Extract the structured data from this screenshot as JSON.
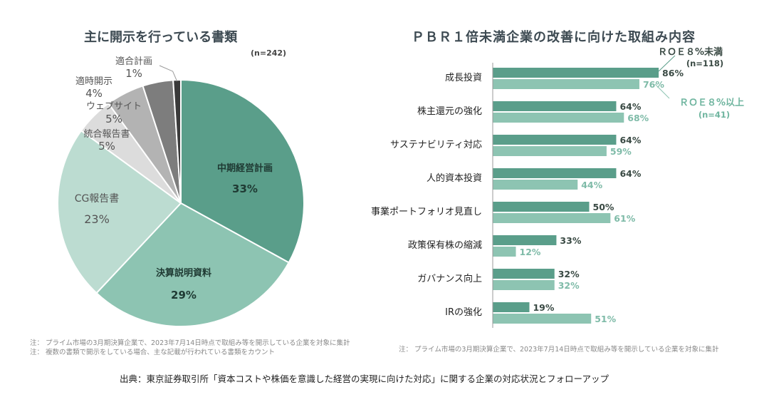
{
  "footer": {
    "source": "出典：東京証券取引所「資本コストや株価を意識した経営の実現に向けた対応」に関する企業の対応状況とフォローアップ"
  },
  "colors": {
    "s1": "#5a9e8a",
    "s2": "#8dc4b2",
    "s3": "#bcdcd1",
    "gray1": "#dcdcdc",
    "gray2": "#b3b3b3",
    "gray3": "#7d7d7d",
    "gray4": "#3a3a3a"
  },
  "chart_data": [
    {
      "type": "pie",
      "title": "主に開示を行っている書類",
      "n_label": "(n=242)",
      "slices": [
        {
          "label": "中期経営計画",
          "value": 33,
          "value_label": "33%"
        },
        {
          "label": "決算説明資料",
          "value": 29,
          "value_label": "29%"
        },
        {
          "label": "CG報告書",
          "value": 23,
          "value_label": "23%"
        },
        {
          "label": "統合報告書",
          "value": 5,
          "value_label": "5%"
        },
        {
          "label": "ウェブサイト",
          "value": 5,
          "value_label": "5%"
        },
        {
          "label": "適時開示",
          "value": 4,
          "value_label": "4%"
        },
        {
          "label": "適合計画",
          "value": 1,
          "value_label": "1%"
        }
      ],
      "notes": [
        "注： プライム市場の3月期決算企業で、2023年7月14日時点で取組み等を開示している企業を対象に集計",
        "注： 複数の書類で開示をしている場合、主な記載が行われている書類をカウント"
      ]
    },
    {
      "type": "bar",
      "orientation": "horizontal",
      "title": "ＰＢＲ１倍未満企業の改善に向けた取組み内容",
      "categories": [
        "成長投資",
        "株主還元の強化",
        "サステナビリティ対応",
        "人的資本投資",
        "事業ポートフォリオ見直し",
        "政策保有株の縮減",
        "ガバナンス向上",
        "IRの強化"
      ],
      "series": [
        {
          "name": "ＲＯＥ８%未満",
          "n_label": "(n=118)",
          "values": [
            86,
            64,
            64,
            64,
            50,
            33,
            32,
            19
          ]
        },
        {
          "name": "ＲＯＥ８%以上",
          "n_label": "(n=41)",
          "values": [
            76,
            68,
            59,
            44,
            61,
            12,
            32,
            51
          ]
        }
      ],
      "xlim": [
        0,
        100
      ],
      "notes": [
        "注： プライム市場の3月期決算企業で、2023年7月14日時点で取組み等を開示している企業を対象に集計"
      ]
    }
  ]
}
